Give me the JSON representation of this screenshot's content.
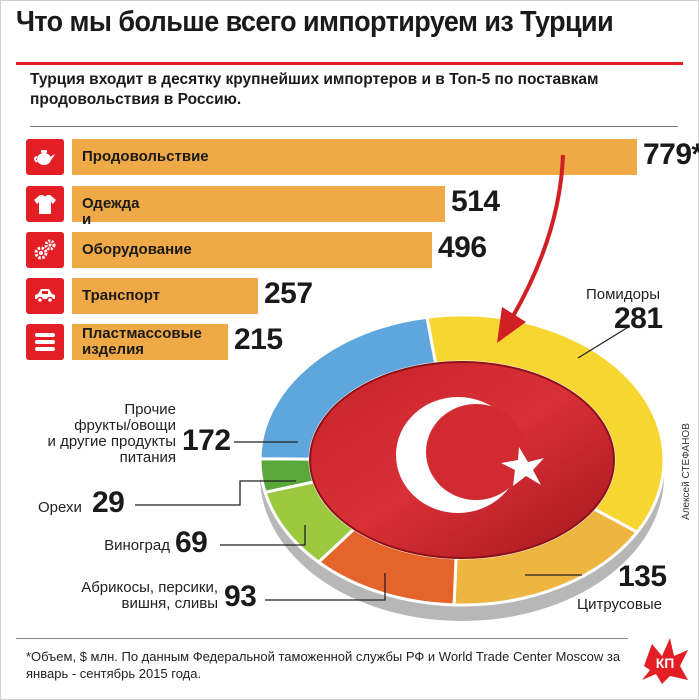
{
  "title": "Что мы больше всего импортируем из Турции",
  "subtitle": "Турция входит в десятку крупнейших импортеров и в Топ-5 по поставкам продовольствия в Россию.",
  "credit": "Алексей СТЕФАНОВ",
  "footnote": "*Объем, $ млн. По данным Федеральной таможенной службы РФ и World Trade Center Moscow за январь - сентябрь 2015 года.",
  "logo_text": "КП",
  "colors": {
    "bar": "#efa946",
    "icon_bg": "#e31e24",
    "accent": "#e31e24"
  },
  "bars": [
    {
      "label": "Продовольствие",
      "value": "779*",
      "icon": "teapot-icon"
    },
    {
      "label": "Одежда и текстиль",
      "value": "514",
      "icon": "tshirt-icon"
    },
    {
      "label": "Оборудование",
      "value": "496",
      "icon": "gears-icon"
    },
    {
      "label": "Транспорт",
      "value": "257",
      "icon": "car-icon"
    },
    {
      "label": "Пластмассовые\nизделия",
      "value": "215",
      "icon": "stack-icon"
    }
  ],
  "segments": [
    {
      "label": "Помидоры",
      "value": "281"
    },
    {
      "label": "Цитрусовые",
      "value": "135"
    },
    {
      "label": "Абрикосы, персики,\nвишня, сливы",
      "value": "93"
    },
    {
      "label": "Виноград",
      "value": "69"
    },
    {
      "label": "Орехи",
      "value": "29"
    },
    {
      "label": "Прочие\nфрукты/овощи\nи другие продукты\nпитания",
      "value": "172"
    }
  ],
  "chart_data": [
    {
      "type": "bar",
      "orientation": "horizontal",
      "categories": [
        "Продовольствие",
        "Одежда и текстиль",
        "Оборудование",
        "Транспорт",
        "Пластмассовые изделия"
      ],
      "values": [
        779,
        514,
        496,
        257,
        215
      ],
      "value_labels": [
        "779*",
        "514",
        "496",
        "257",
        "215"
      ]
    },
    {
      "type": "pie",
      "style": "donut",
      "categories": [
        "Помидоры",
        "Цитрусовые",
        "Абрикосы, персики, вишня, сливы",
        "Виноград",
        "Орехи",
        "Прочие фрукты/овощи и другие продукты питания"
      ],
      "values": [
        281,
        135,
        93,
        69,
        29,
        172
      ],
      "colors": [
        "#f7d631",
        "#efb541",
        "#e4642a",
        "#9cc93f",
        "#5aa83a",
        "#5ea6dc"
      ]
    }
  ]
}
